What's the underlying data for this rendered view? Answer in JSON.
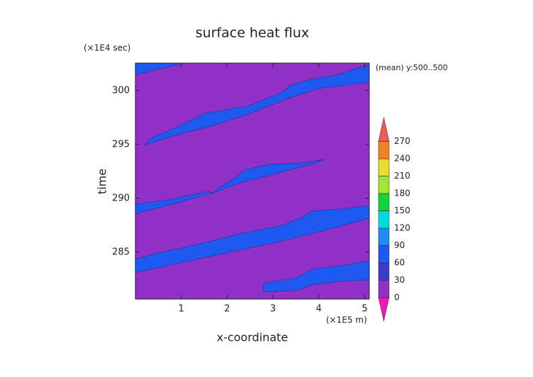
{
  "chart_data": {
    "type": "contour",
    "title": "surface heat flux",
    "ylabel_unit": "(×1E4 sec)",
    "annotation": "(mean) y:500..500",
    "ylabel": "time",
    "xlabel": "x-coordinate",
    "xlabel_unit": "(×1E5 m)",
    "xlim": [
      0,
      5.1
    ],
    "xticks": [
      1,
      2,
      3,
      4,
      5
    ],
    "ylim": [
      280.65,
      302.55
    ],
    "yticks": [
      285,
      290,
      295,
      300
    ],
    "levels": [
      0,
      30,
      60,
      90,
      120,
      150,
      180,
      210,
      240,
      270
    ],
    "colors": [
      "#f018b0",
      "#9032c8",
      "#3c3cc8",
      "#1e5af0",
      "#1e8cf0",
      "#00dcdc",
      "#14d23c",
      "#a0e632",
      "#e6dc32",
      "#f08228",
      "#f05a5a"
    ],
    "regions": [
      {
        "level": 30,
        "x": [
          0,
          1.05,
          0.58,
          0
        ],
        "y": [
          302.55,
          302.55,
          302.04,
          301.45
        ]
      },
      {
        "level": 30,
        "x": [
          0.19,
          1.05,
          1.67,
          2.52,
          2.91,
          3.38,
          4.0,
          5.1,
          5.1,
          4.85,
          4.46,
          3.84,
          3.38,
          3.22,
          2.45,
          1.51,
          0.89,
          0.35
        ],
        "y": [
          294.93,
          296.05,
          296.71,
          297.89,
          298.55,
          299.34,
          300.2,
          300.79,
          302.37,
          302.11,
          301.51,
          301.05,
          300.53,
          299.87,
          298.55,
          297.89,
          296.58,
          295.59
        ]
      },
      {
        "level": 30,
        "x": [
          1.67,
          2.29,
          2.91,
          3.84,
          4.12,
          3.69,
          2.91,
          2.37,
          2.21,
          1.82
        ],
        "y": [
          290.46,
          291.45,
          292.11,
          293.16,
          293.62,
          293.29,
          293.16,
          292.63,
          291.97,
          290.99
        ]
      },
      {
        "level": 30,
        "x": [
          0,
          0.74,
          1.59,
          1.67,
          0.89,
          0
        ],
        "y": [
          289.47,
          289.87,
          290.66,
          290.53,
          289.54,
          288.55
        ]
      },
      {
        "level": 30,
        "x": [
          0,
          1.05,
          2.14,
          3.22,
          4.15,
          5.1,
          5.1,
          4.46,
          3.84,
          3.69,
          3.22,
          2.29,
          1.36,
          0.43,
          0
        ],
        "y": [
          283.09,
          284.08,
          285.07,
          286.05,
          287.04,
          288.16,
          289.34,
          289.01,
          288.82,
          288.36,
          287.5,
          286.71,
          285.72,
          284.87,
          284.34
        ]
      },
      {
        "level": 30,
        "x": [
          2.79,
          2.79,
          3.53,
          3.84,
          4.46,
          5.1,
          5.1,
          4.46,
          3.84,
          3.53
        ],
        "y": [
          281.32,
          282.11,
          282.63,
          283.42,
          283.75,
          284.21,
          282.43,
          282.3,
          281.97,
          281.45
        ]
      }
    ]
  }
}
